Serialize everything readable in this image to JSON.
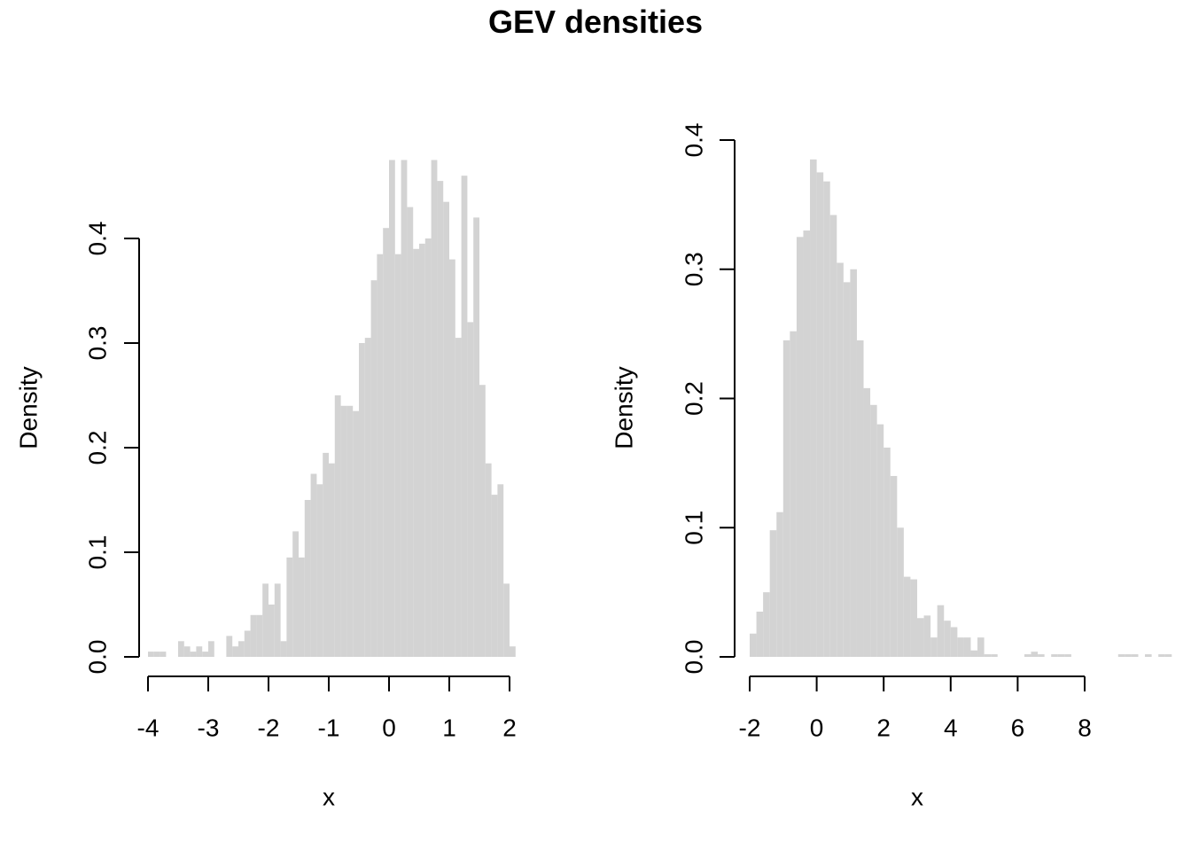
{
  "title": "GEV densities",
  "colors": {
    "bar": "#d3d3d3",
    "axis": "#000000"
  },
  "chart_data": [
    {
      "type": "bar",
      "subtype": "histogram",
      "xlabel": "x",
      "ylabel": "Density",
      "xlim": [
        -4,
        2
      ],
      "ylim": [
        0,
        0.4
      ],
      "xticks": [
        "-4",
        "-3",
        "-2",
        "-1",
        "0",
        "1",
        "2"
      ],
      "yticks": [
        "0.0",
        "0.1",
        "0.2",
        "0.3",
        "0.4"
      ],
      "bin_start": -4.0,
      "bin_width": 0.1,
      "values": [
        0.005,
        0.005,
        0.005,
        0,
        0,
        0.015,
        0.01,
        0.005,
        0.01,
        0.005,
        0.015,
        0,
        0,
        0.02,
        0.01,
        0.015,
        0.025,
        0.04,
        0.04,
        0.07,
        0.05,
        0.07,
        0.015,
        0.095,
        0.12,
        0.095,
        0.15,
        0.175,
        0.165,
        0.195,
        0.185,
        0.25,
        0.24,
        0.24,
        0.235,
        0.3,
        0.305,
        0.36,
        0.385,
        0.41,
        0.475,
        0.385,
        0.475,
        0.43,
        0.39,
        0.395,
        0.4,
        0.475,
        0.455,
        0.435,
        0.38,
        0.305,
        0.46,
        0.32,
        0.42,
        0.26,
        0.185,
        0.155,
        0.165,
        0.07,
        0.01
      ]
    },
    {
      "type": "bar",
      "subtype": "histogram",
      "xlabel": "x",
      "ylabel": "Density",
      "xlim": [
        -2,
        8
      ],
      "ylim": [
        0,
        0.4
      ],
      "xticks": [
        "-2",
        "0",
        "2",
        "4",
        "6",
        "8"
      ],
      "yticks": [
        "0.0",
        "0.1",
        "0.2",
        "0.3",
        "0.4"
      ],
      "bin_start": -2.0,
      "bin_width": 0.2,
      "values": [
        0.018,
        0.035,
        0.05,
        0.098,
        0.112,
        0.245,
        0.252,
        0.325,
        0.33,
        0.385,
        0.375,
        0.368,
        0.342,
        0.305,
        0.29,
        0.3,
        0.245,
        0.208,
        0.195,
        0.18,
        0.162,
        0.14,
        0.1,
        0.062,
        0.06,
        0.03,
        0.032,
        0.015,
        0.04,
        0.028,
        0.023,
        0.015,
        0.015,
        0.005,
        0.015,
        0.002,
        0.002,
        0,
        0,
        0,
        0,
        0.002,
        0.004,
        0.002,
        0,
        0.002,
        0.002,
        0.002,
        0,
        0,
        0,
        0,
        0,
        0,
        0,
        0.002,
        0.002,
        0.002,
        0,
        0.002,
        0,
        0.002,
        0.002
      ]
    }
  ]
}
